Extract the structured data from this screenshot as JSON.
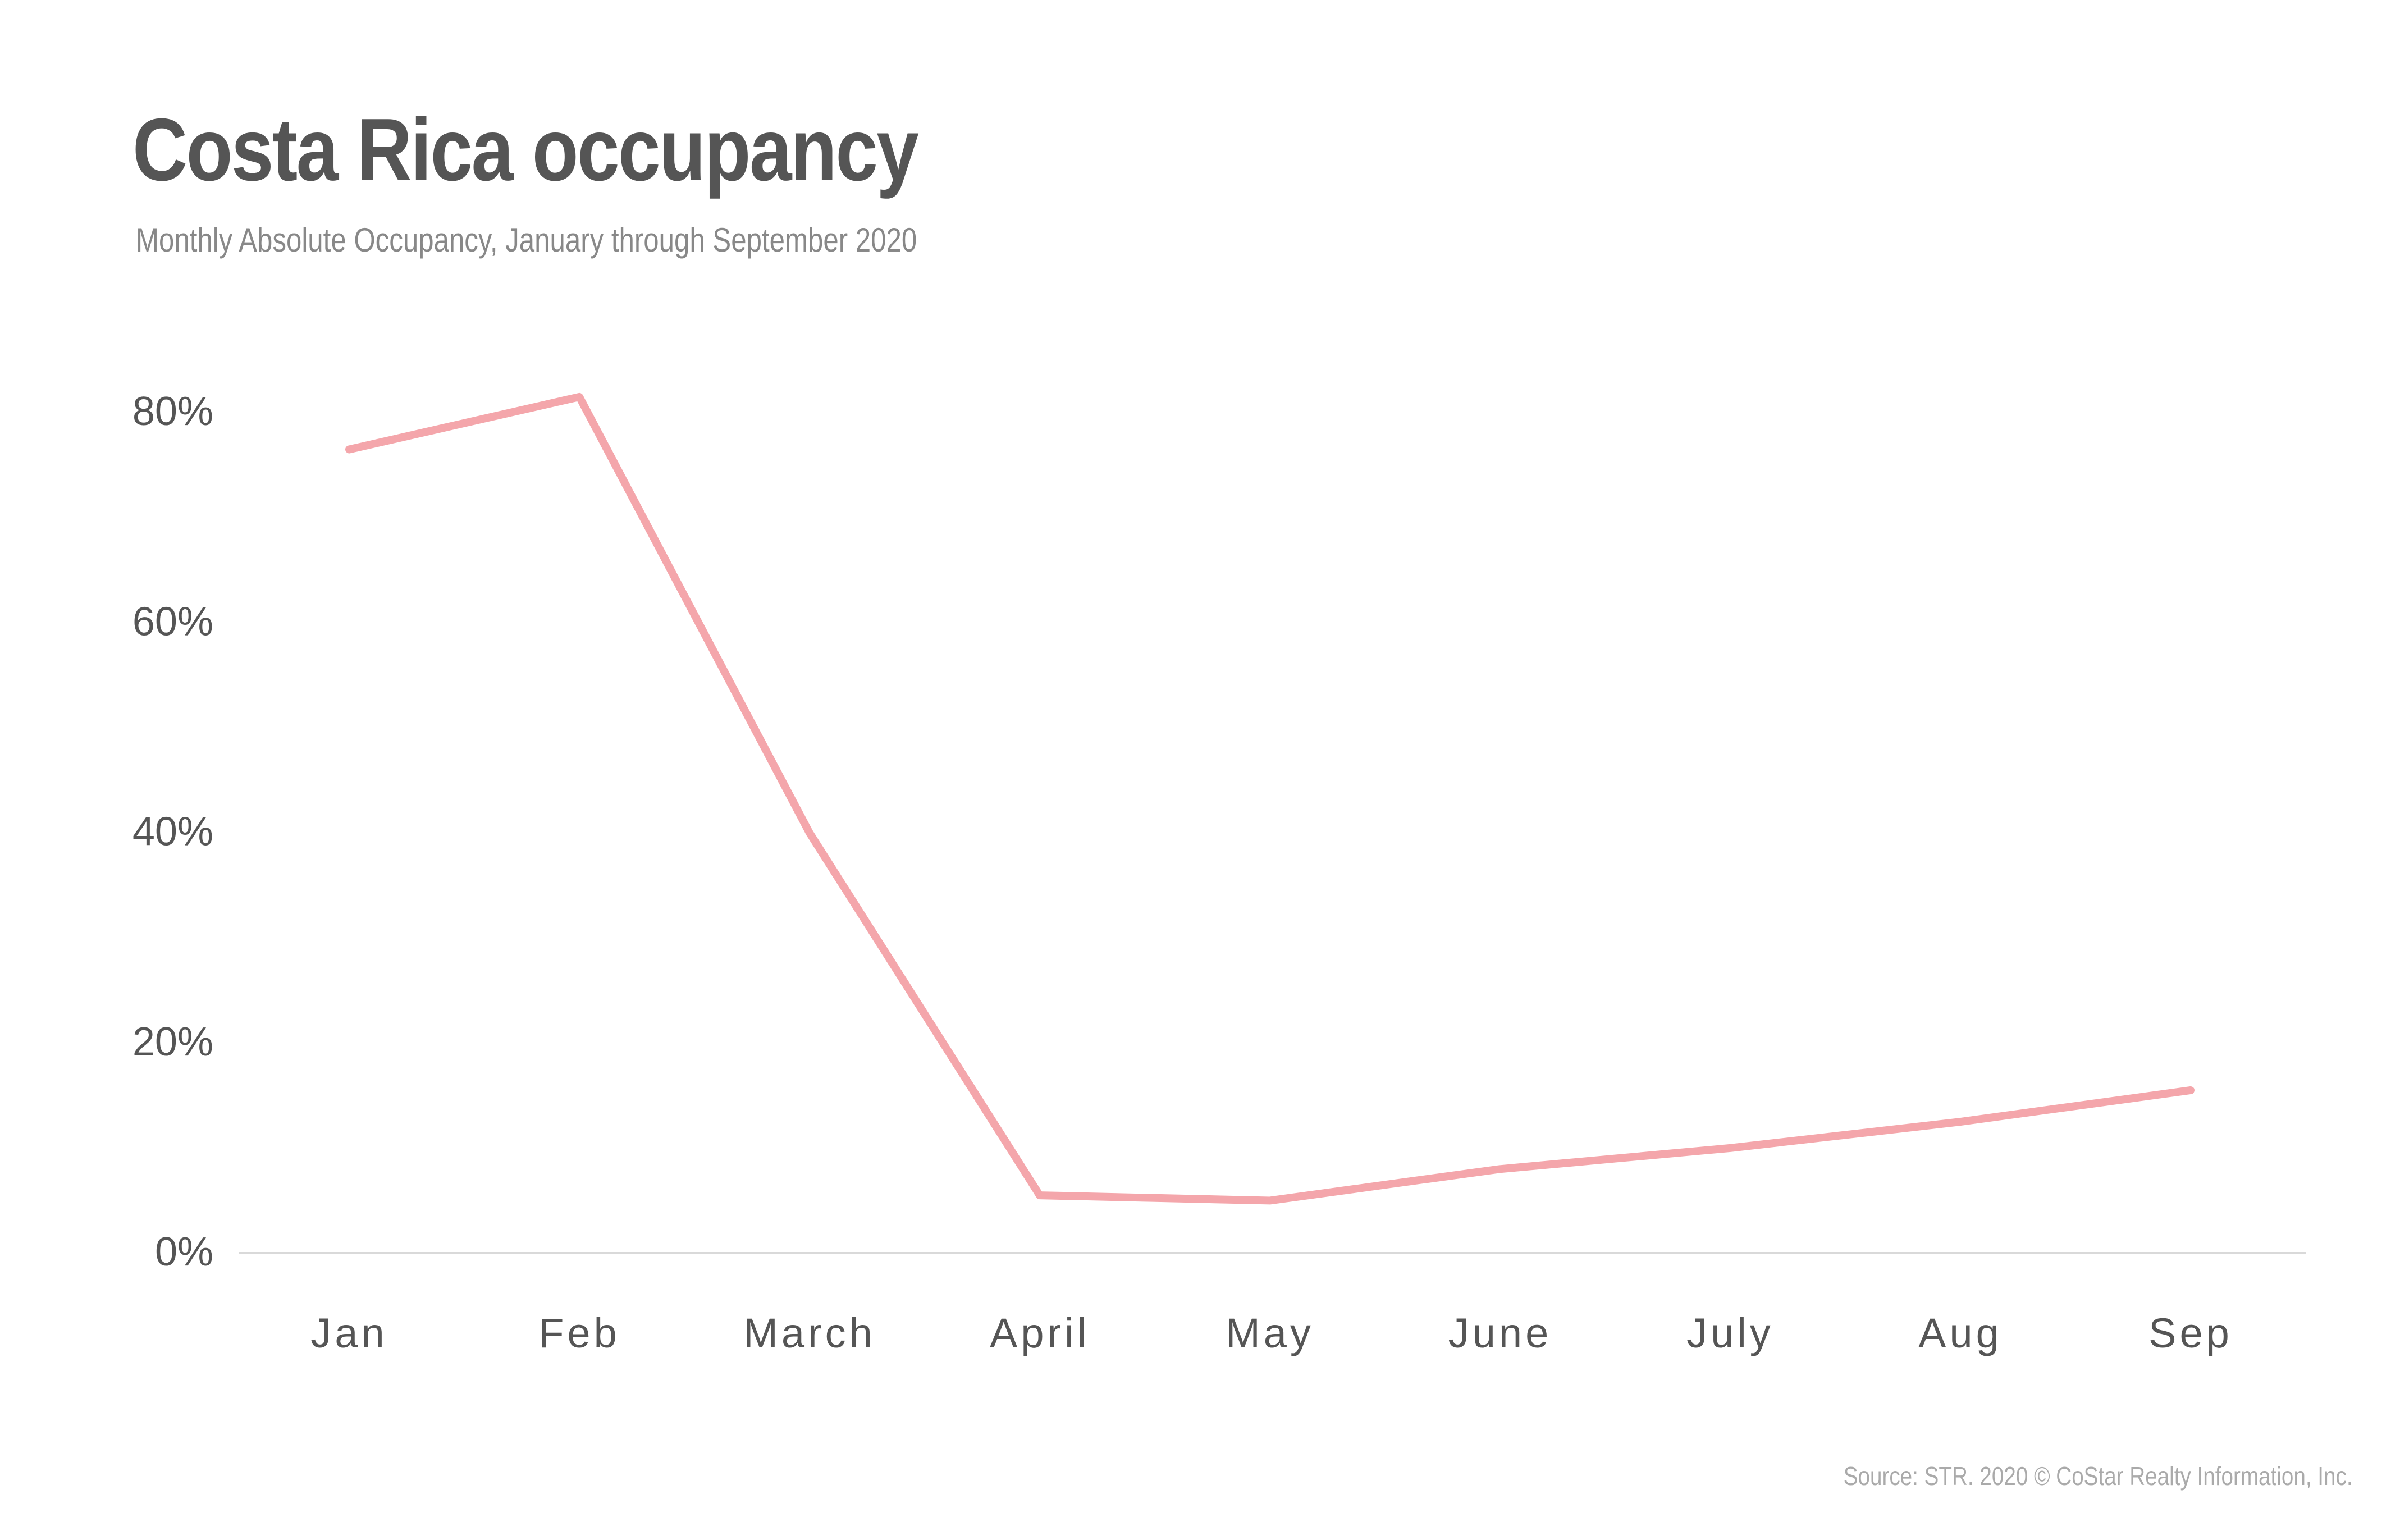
{
  "chart_data": {
    "type": "line",
    "title": "Costa Rica occupancy",
    "subtitle": "Monthly Absolute Occupancy, January through September 2020",
    "xlabel": "",
    "ylabel": "",
    "categories": [
      "Jan",
      "Feb",
      "March",
      "April",
      "May",
      "June",
      "July",
      "Aug",
      "Sep"
    ],
    "series": [
      {
        "values": [
          76.5,
          81.5,
          40,
          5.5,
          5,
          8,
          10,
          12.5,
          15.5
        ]
      }
    ],
    "yticks": [
      "0%",
      "20%",
      "40%",
      "60%",
      "80%"
    ],
    "ytick_values": [
      0,
      20,
      40,
      60,
      80
    ],
    "ylim": [
      0,
      80
    ],
    "grid": false,
    "line_color": "#f4a6ab",
    "source": "Source: STR. 2020 © CoStar Realty Information, Inc."
  }
}
